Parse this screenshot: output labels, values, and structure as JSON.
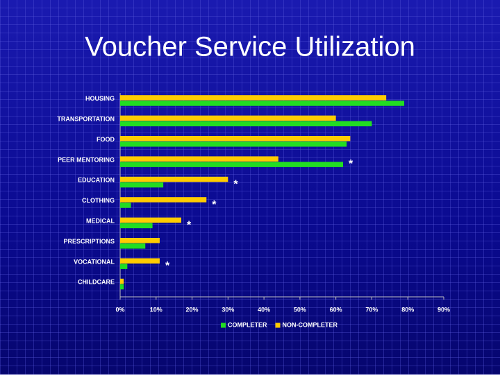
{
  "chart_data": {
    "type": "bar",
    "orientation": "horizontal",
    "title": "Voucher Service Utilization",
    "categories": [
      "HOUSING",
      "TRANSPORTATION",
      "FOOD",
      "PEER MENTORING",
      "EDUCATION",
      "CLOTHING",
      "MEDICAL",
      "PRESCRIPTIONS",
      "VOCATIONAL",
      "CHILDCARE"
    ],
    "series": [
      {
        "name": "COMPLETER",
        "color": "#22dd22",
        "values": [
          79,
          70,
          63,
          62,
          12,
          3,
          9,
          7,
          2,
          1
        ]
      },
      {
        "name": "NON-COMPLETER",
        "color": "#ffcc00",
        "values": [
          74,
          60,
          64,
          44,
          30,
          24,
          17,
          11,
          11,
          1
        ]
      }
    ],
    "annotations": [
      {
        "text": "*",
        "category": 3
      },
      {
        "text": "*",
        "category": 4
      },
      {
        "text": "*",
        "category": 5
      },
      {
        "text": "*",
        "category": 6
      },
      {
        "text": "*",
        "category": 8
      }
    ],
    "xlim": [
      0,
      90
    ],
    "xticks": [
      {
        "value": 0,
        "label": "0%"
      },
      {
        "value": 10,
        "label": "10%"
      },
      {
        "value": 20,
        "label": "20%"
      },
      {
        "value": 30,
        "label": "30%"
      },
      {
        "value": 40,
        "label": "40%"
      },
      {
        "value": 50,
        "label": "50%"
      },
      {
        "value": 60,
        "label": "60%"
      },
      {
        "value": 70,
        "label": "70%"
      },
      {
        "value": 80,
        "label": "80%"
      },
      {
        "value": 90,
        "label": "90%"
      }
    ],
    "grid": false,
    "legend": "bottom"
  }
}
